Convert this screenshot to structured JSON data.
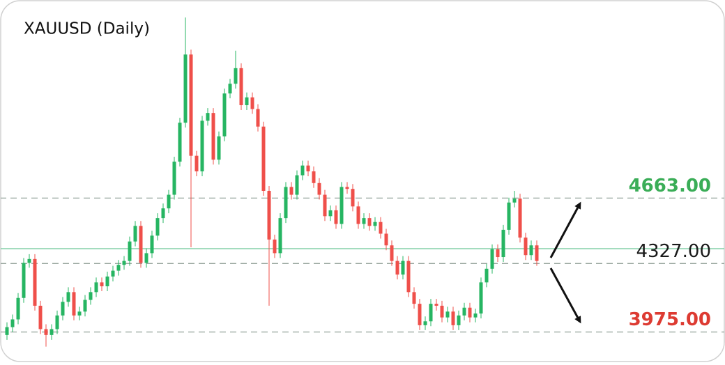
{
  "chart_data": {
    "type": "candlestick",
    "title": "XAUUSD (Daily)",
    "ylim": [
      3820,
      5680
    ],
    "up_color": "#26b562",
    "down_color": "#ef4f4a",
    "candles": {
      "open": [
        3960,
        4000,
        4040,
        4150,
        4330,
        4350,
        4110,
        3990,
        3960,
        3990,
        4060,
        4130,
        4180,
        4060,
        4080,
        4140,
        4180,
        4230,
        4210,
        4260,
        4290,
        4320,
        4340,
        4440,
        4520,
        4330,
        4380,
        4470,
        4560,
        4610,
        4680,
        4850,
        5050,
        5400,
        4880,
        4800,
        5060,
        5100,
        4860,
        4980,
        5200,
        5250,
        5330,
        5140,
        5180,
        5120,
        5030,
        4700,
        4450,
        4380,
        4560,
        4720,
        4680,
        4780,
        4830,
        4800,
        4740,
        4680,
        4570,
        4600,
        4530,
        4720,
        4710,
        4620,
        4530,
        4560,
        4520,
        4540,
        4480,
        4420,
        4340,
        4270,
        4340,
        4180,
        4120,
        4010,
        4030,
        4120,
        4110,
        4050,
        4080,
        4010,
        4060,
        4100,
        4050,
        4070,
        4230,
        4300,
        4400,
        4360,
        4500,
        4640,
        4660,
        4460,
        4370,
        4420
      ],
      "high": [
        4025,
        4065,
        4175,
        4355,
        4375,
        4375,
        4135,
        4015,
        4015,
        4085,
        4155,
        4205,
        4205,
        4105,
        4165,
        4205,
        4255,
        4255,
        4285,
        4315,
        4345,
        4365,
        4465,
        4545,
        4545,
        4405,
        4495,
        4585,
        4635,
        4705,
        4875,
        5075,
        5590,
        5425,
        4905,
        5085,
        5125,
        5125,
        5005,
        5225,
        5275,
        5420,
        5355,
        5205,
        5205,
        5145,
        5055,
        4725,
        4475,
        4585,
        4745,
        4745,
        4805,
        4855,
        4855,
        4825,
        4765,
        4705,
        4625,
        4625,
        4745,
        4745,
        4735,
        4645,
        4585,
        4585,
        4565,
        4565,
        4505,
        4445,
        4365,
        4365,
        4365,
        4205,
        4145,
        4055,
        4145,
        4145,
        4135,
        4105,
        4105,
        4085,
        4125,
        4125,
        4095,
        4255,
        4325,
        4425,
        4425,
        4525,
        4665,
        4700,
        4685,
        4485,
        4445,
        4445
      ],
      "low": [
        3935,
        3975,
        4015,
        4125,
        4305,
        4085,
        3965,
        3900,
        3935,
        3965,
        4035,
        4105,
        4035,
        4035,
        4055,
        4115,
        4155,
        4185,
        4185,
        4235,
        4265,
        4295,
        4315,
        4415,
        4305,
        4305,
        4355,
        4445,
        4535,
        4585,
        4655,
        4825,
        5025,
        4410,
        4775,
        4775,
        5035,
        4835,
        4835,
        4955,
        5175,
        5225,
        5115,
        5115,
        5095,
        5005,
        4675,
        4110,
        4355,
        4355,
        4535,
        4655,
        4655,
        4755,
        4775,
        4715,
        4655,
        4545,
        4545,
        4505,
        4505,
        4685,
        4595,
        4505,
        4505,
        4495,
        4495,
        4455,
        4395,
        4315,
        4245,
        4245,
        4155,
        4095,
        3985,
        3985,
        4005,
        4085,
        4025,
        4025,
        3985,
        3985,
        4035,
        4025,
        4025,
        4045,
        4205,
        4275,
        4335,
        4335,
        4475,
        4615,
        4435,
        4345,
        4345,
        4315
      ],
      "close": [
        4000,
        4040,
        4150,
        4330,
        4350,
        4110,
        3990,
        3960,
        3990,
        4060,
        4130,
        4180,
        4060,
        4080,
        4140,
        4180,
        4230,
        4210,
        4260,
        4290,
        4320,
        4340,
        4440,
        4520,
        4330,
        4380,
        4470,
        4560,
        4610,
        4680,
        4850,
        5050,
        5400,
        4880,
        4800,
        5060,
        5100,
        4860,
        4980,
        5200,
        5250,
        5330,
        5140,
        5180,
        5120,
        5030,
        4700,
        4450,
        4380,
        4560,
        4720,
        4680,
        4780,
        4830,
        4800,
        4740,
        4680,
        4570,
        4600,
        4530,
        4720,
        4710,
        4620,
        4530,
        4560,
        4520,
        4540,
        4480,
        4420,
        4340,
        4270,
        4340,
        4180,
        4120,
        4010,
        4030,
        4120,
        4110,
        4050,
        4080,
        4010,
        4060,
        4100,
        4050,
        4070,
        4230,
        4300,
        4400,
        4360,
        4500,
        4640,
        4660,
        4460,
        4370,
        4420,
        4340
      ]
    },
    "price_line": {
      "value": 4403,
      "color": "#6cc896"
    },
    "levels": [
      {
        "value": 4663,
        "label": "4663.00",
        "color": "#3aad57"
      },
      {
        "value": 4327,
        "label": "4327.00",
        "color": "#1a1a1a"
      },
      {
        "value": 3975,
        "label": "3975.00",
        "color": "#dd3b32"
      }
    ]
  }
}
